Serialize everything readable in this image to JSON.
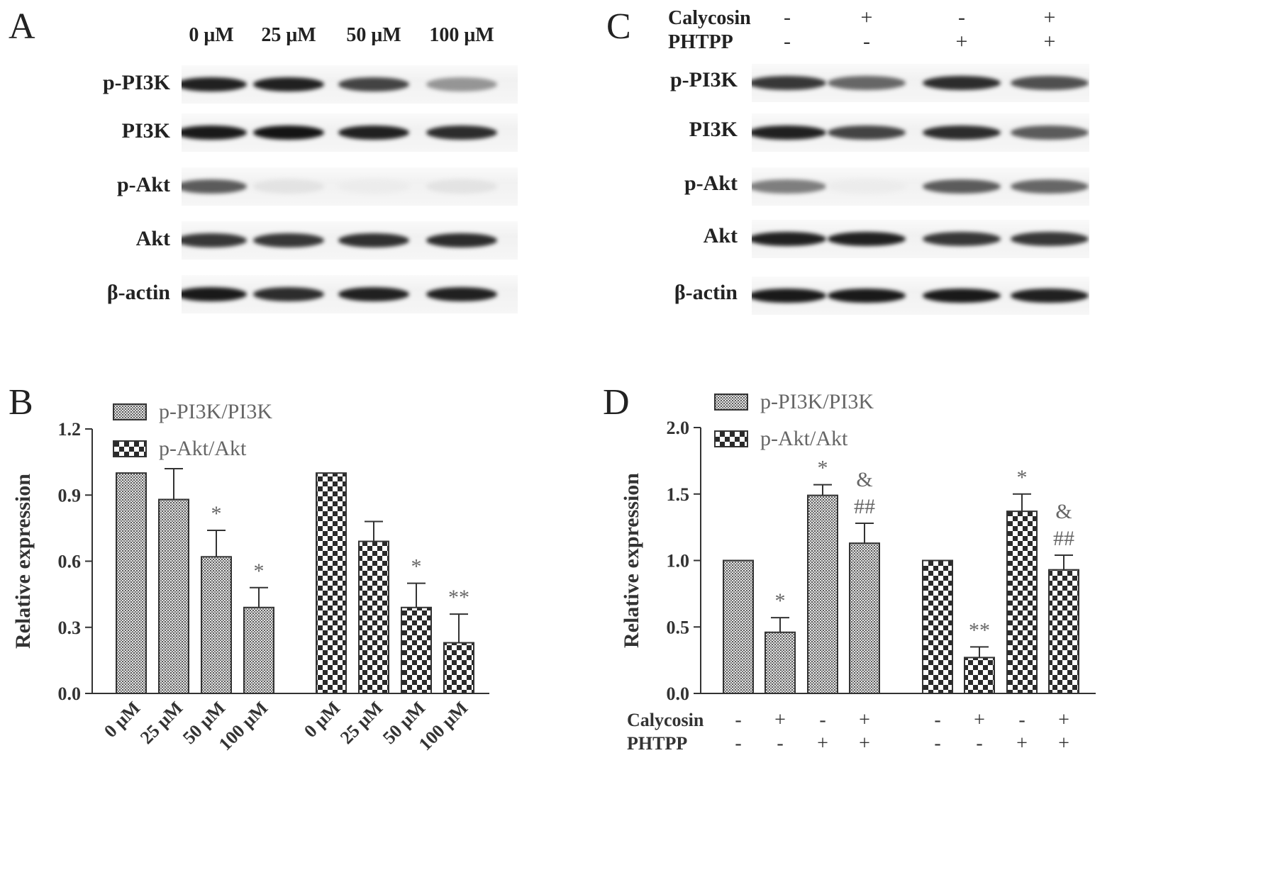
{
  "panel_a": {
    "letter": "A",
    "columns": [
      "0 μM",
      "25 μM",
      "50 μM",
      "100 μM"
    ],
    "rows": [
      {
        "label": "p-PI3K",
        "intensity": [
          0.95,
          0.95,
          0.8,
          0.45
        ]
      },
      {
        "label": "PI3K",
        "intensity": [
          0.98,
          1.0,
          0.95,
          0.9
        ]
      },
      {
        "label": "p-Akt",
        "intensity": [
          0.7,
          0.12,
          0.08,
          0.12
        ]
      },
      {
        "label": "Akt",
        "intensity": [
          0.85,
          0.85,
          0.88,
          0.9
        ]
      },
      {
        "label": "β-actin",
        "intensity": [
          0.98,
          0.9,
          0.95,
          0.95
        ]
      }
    ]
  },
  "panel_c": {
    "letter": "C",
    "conditions": [
      {
        "label": "Calycosin",
        "values": [
          "-",
          "+",
          "-",
          "+"
        ]
      },
      {
        "label": "PHTPP",
        "values": [
          "-",
          "-",
          "+",
          "+"
        ]
      }
    ],
    "rows": [
      {
        "label": "p-PI3K",
        "intensity": [
          0.85,
          0.65,
          0.9,
          0.75
        ]
      },
      {
        "label": "PI3K",
        "intensity": [
          0.95,
          0.8,
          0.9,
          0.7
        ]
      },
      {
        "label": "p-Akt",
        "intensity": [
          0.55,
          0.08,
          0.7,
          0.65
        ]
      },
      {
        "label": "Akt",
        "intensity": [
          0.95,
          0.95,
          0.85,
          0.85
        ]
      },
      {
        "label": "β-actin",
        "intensity": [
          0.98,
          0.98,
          0.98,
          0.95
        ]
      }
    ]
  },
  "chart_data": [
    {
      "panel": "B",
      "type": "bar",
      "ylabel": "Relative expression",
      "ylim": [
        0,
        1.2
      ],
      "yticks": [
        "0.0",
        "0.3",
        "0.6",
        "0.9",
        "1.2"
      ],
      "legend": [
        "p-PI3K/PI3K",
        "p-Akt/Akt"
      ],
      "legend_position": "top-left",
      "groups": [
        {
          "series": "p-PI3K/PI3K",
          "pattern": "fine",
          "categories": [
            "0 μM",
            "25 μM",
            "50 μM",
            "100 μM"
          ],
          "values": [
            1.0,
            0.88,
            0.62,
            0.39
          ],
          "errors": [
            0.0,
            0.14,
            0.12,
            0.09
          ],
          "annotations": [
            "",
            "",
            "*",
            "*"
          ]
        },
        {
          "series": "p-Akt/Akt",
          "pattern": "checker",
          "categories": [
            "0 μM",
            "25 μM",
            "50 μM",
            "100 μM"
          ],
          "values": [
            1.0,
            0.69,
            0.39,
            0.23
          ],
          "errors": [
            0.0,
            0.09,
            0.11,
            0.13
          ],
          "annotations": [
            "",
            "",
            "*",
            "**"
          ]
        }
      ]
    },
    {
      "panel": "D",
      "type": "bar",
      "ylabel": "Relative expression",
      "ylim": [
        0,
        2.0
      ],
      "yticks": [
        "0.0",
        "0.5",
        "1.0",
        "1.5",
        "2.0"
      ],
      "legend": [
        "p-PI3K/PI3K",
        "p-Akt/Akt"
      ],
      "legend_position": "top-left",
      "condition_labels": [
        "Calycosin",
        "PHTPP"
      ],
      "groups": [
        {
          "series": "p-PI3K/PI3K",
          "pattern": "fine",
          "calycosin": [
            "-",
            "+",
            "-",
            "+"
          ],
          "phtpp": [
            "-",
            "-",
            "+",
            "+"
          ],
          "values": [
            1.0,
            0.46,
            1.49,
            1.13
          ],
          "errors": [
            0.0,
            0.11,
            0.08,
            0.15
          ],
          "annotations": [
            "",
            "*",
            "*",
            "&\n##"
          ]
        },
        {
          "series": "p-Akt/Akt",
          "pattern": "checker",
          "calycosin": [
            "-",
            "+",
            "-",
            "+"
          ],
          "phtpp": [
            "-",
            "-",
            "+",
            "+"
          ],
          "values": [
            1.0,
            0.27,
            1.37,
            0.93
          ],
          "errors": [
            0.0,
            0.08,
            0.13,
            0.11
          ],
          "annotations": [
            "",
            "**",
            "*",
            "&\n##"
          ]
        }
      ]
    }
  ]
}
